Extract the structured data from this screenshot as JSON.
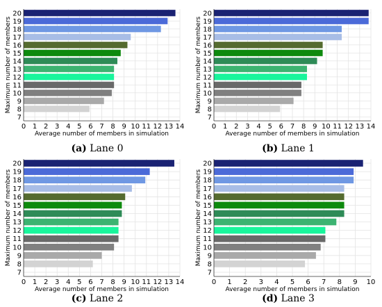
{
  "chart_data": [
    {
      "type": "bar",
      "orientation": "horizontal",
      "caption_letter": "(a)",
      "caption_text": " Lane 0",
      "xlabel": "Average number of members in simulation",
      "ylabel": "Maximum number of members",
      "xlim": [
        0,
        14
      ],
      "xticks": [
        "0",
        "1",
        "2",
        "3",
        "4",
        "5",
        "6",
        "7",
        "8",
        "9",
        "10",
        "11",
        "12",
        "13",
        "14"
      ],
      "ylim": [
        7,
        20
      ],
      "categories": [
        "20",
        "19",
        "18",
        "17",
        "16",
        "15",
        "14",
        "13",
        "12",
        "11",
        "10",
        "9",
        "8",
        "7"
      ],
      "values": [
        13.6,
        12.9,
        12.3,
        9.6,
        9.3,
        8.7,
        8.4,
        8.1,
        8.1,
        8.1,
        7.9,
        7.2,
        5.9,
        0
      ],
      "grid": true
    },
    {
      "type": "bar",
      "orientation": "horizontal",
      "caption_letter": "(b)",
      "caption_text": " Lane 1",
      "xlabel": "Average number of members in simulation",
      "ylabel": "Maximum number of members",
      "xlim": [
        0,
        14
      ],
      "xticks": [
        "0",
        "1",
        "2",
        "3",
        "4",
        "5",
        "6",
        "7",
        "8",
        "9",
        "10",
        "11",
        "12",
        "13",
        "14"
      ],
      "ylim": [
        7,
        20
      ],
      "categories": [
        "20",
        "19",
        "18",
        "17",
        "16",
        "15",
        "14",
        "13",
        "12",
        "11",
        "10",
        "9",
        "8",
        "7"
      ],
      "values": [
        13.8,
        13.8,
        11.4,
        11.4,
        9.7,
        9.7,
        9.2,
        8.3,
        8.3,
        7.8,
        7.8,
        7.1,
        5.9,
        0
      ],
      "grid": true
    },
    {
      "type": "bar",
      "orientation": "horizontal",
      "caption_letter": "(c)",
      "caption_text": " Lane 2",
      "xlabel": "Average number of members in simulation",
      "ylabel": "Maximum number of members",
      "xlim": [
        0,
        14
      ],
      "xticks": [
        "0",
        "1",
        "2",
        "3",
        "4",
        "5",
        "6",
        "7",
        "8",
        "9",
        "10",
        "11",
        "12",
        "13",
        "14"
      ],
      "ylim": [
        7,
        20
      ],
      "categories": [
        "20",
        "19",
        "18",
        "17",
        "16",
        "15",
        "14",
        "13",
        "12",
        "11",
        "10",
        "9",
        "8",
        "7"
      ],
      "values": [
        13.5,
        11.3,
        10.9,
        9.7,
        9.1,
        8.8,
        8.8,
        8.5,
        8.5,
        8.5,
        8.1,
        7.0,
        6.2,
        0
      ],
      "grid": true
    },
    {
      "type": "bar",
      "orientation": "horizontal",
      "caption_letter": "(d)",
      "caption_text": " Lane 3",
      "xlabel": "Average number of members in simulation",
      "ylabel": "Maximum number of members",
      "xlim": [
        0,
        10
      ],
      "xticks": [
        "0",
        "1",
        "2",
        "3",
        "4",
        "5",
        "6",
        "7",
        "8",
        "9",
        "10"
      ],
      "ylim": [
        7,
        20
      ],
      "categories": [
        "20",
        "19",
        "18",
        "17",
        "16",
        "15",
        "14",
        "13",
        "12",
        "11",
        "10",
        "9",
        "8",
        "7"
      ],
      "values": [
        9.5,
        8.9,
        8.9,
        8.3,
        8.3,
        8.3,
        8.3,
        7.8,
        7.1,
        7.1,
        6.8,
        6.5,
        5.8,
        0
      ],
      "grid": true
    }
  ],
  "bar_colors": [
    "#1a2273",
    "#4b6ad8",
    "#6f98e3",
    "#a8bde6",
    "#556b2f",
    "#0e8a0e",
    "#2e8b57",
    "#3cb371",
    "#19f59c",
    "#696969",
    "#808080",
    "#a9a9a9",
    "#d3d3d3",
    "#f0f0f0"
  ]
}
